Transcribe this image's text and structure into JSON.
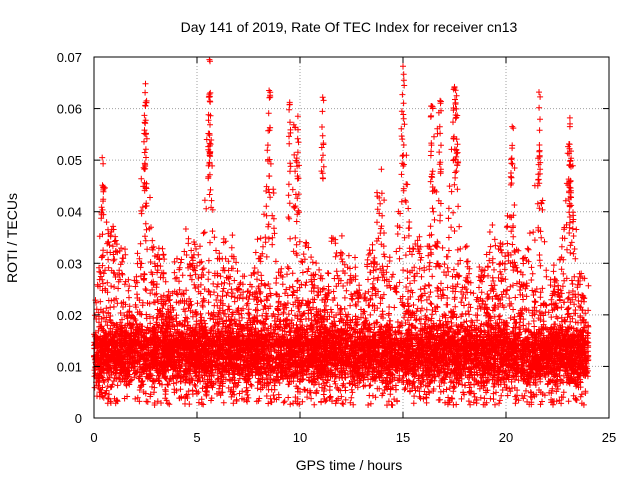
{
  "chart_data": {
    "type": "scatter",
    "title": "Day 141 of 2019, Rate Of TEC Index for receiver cn13",
    "xlabel": "GPS time / hours",
    "ylabel": "ROTI / TECUs",
    "xlim": [
      0,
      25
    ],
    "ylim": [
      0,
      0.07
    ],
    "x_ticks": [
      "0",
      "5",
      "10",
      "15",
      "20",
      "25"
    ],
    "y_ticks": [
      "0",
      "0.01",
      "0.02",
      "0.03",
      "0.04",
      "0.05",
      "0.06",
      "0.07"
    ],
    "grid": true,
    "marker": "+",
    "colors": {
      "points": "#ff0000",
      "grid": "#a0a0a0",
      "axes": "#000000"
    },
    "series": [
      {
        "name": "ROTI",
        "x_range": [
          0,
          24
        ],
        "typical_band": [
          0.004,
          0.02
        ],
        "notable_peaks": [
          {
            "x": 0.4,
            "y": 0.0505
          },
          {
            "x": 2.5,
            "y": 0.0648
          },
          {
            "x": 2.5,
            "y": 0.0605
          },
          {
            "x": 5.6,
            "y": 0.0695
          },
          {
            "x": 5.6,
            "y": 0.0628
          },
          {
            "x": 8.5,
            "y": 0.0635
          },
          {
            "x": 9.5,
            "y": 0.0612
          },
          {
            "x": 9.9,
            "y": 0.0585
          },
          {
            "x": 11.1,
            "y": 0.0622
          },
          {
            "x": 15.0,
            "y": 0.0682
          },
          {
            "x": 16.4,
            "y": 0.0605
          },
          {
            "x": 16.8,
            "y": 0.0615
          },
          {
            "x": 17.5,
            "y": 0.0642
          },
          {
            "x": 17.6,
            "y": 0.0625
          },
          {
            "x": 20.3,
            "y": 0.0565
          },
          {
            "x": 21.6,
            "y": 0.0632
          },
          {
            "x": 23.1,
            "y": 0.0582
          },
          {
            "x": 23.1,
            "y": 0.0565
          }
        ],
        "busy_windows": [
          {
            "center": 0.5,
            "height": 0.045
          },
          {
            "center": 2.5,
            "height": 0.06
          },
          {
            "center": 5.6,
            "height": 0.06
          },
          {
            "center": 8.5,
            "height": 0.058
          },
          {
            "center": 9.7,
            "height": 0.058
          },
          {
            "center": 13.9,
            "height": 0.05
          },
          {
            "center": 15.0,
            "height": 0.06
          },
          {
            "center": 16.6,
            "height": 0.058
          },
          {
            "center": 17.5,
            "height": 0.06
          },
          {
            "center": 20.3,
            "height": 0.052
          },
          {
            "center": 21.6,
            "height": 0.055
          },
          {
            "center": 23.1,
            "height": 0.055
          }
        ]
      }
    ]
  }
}
